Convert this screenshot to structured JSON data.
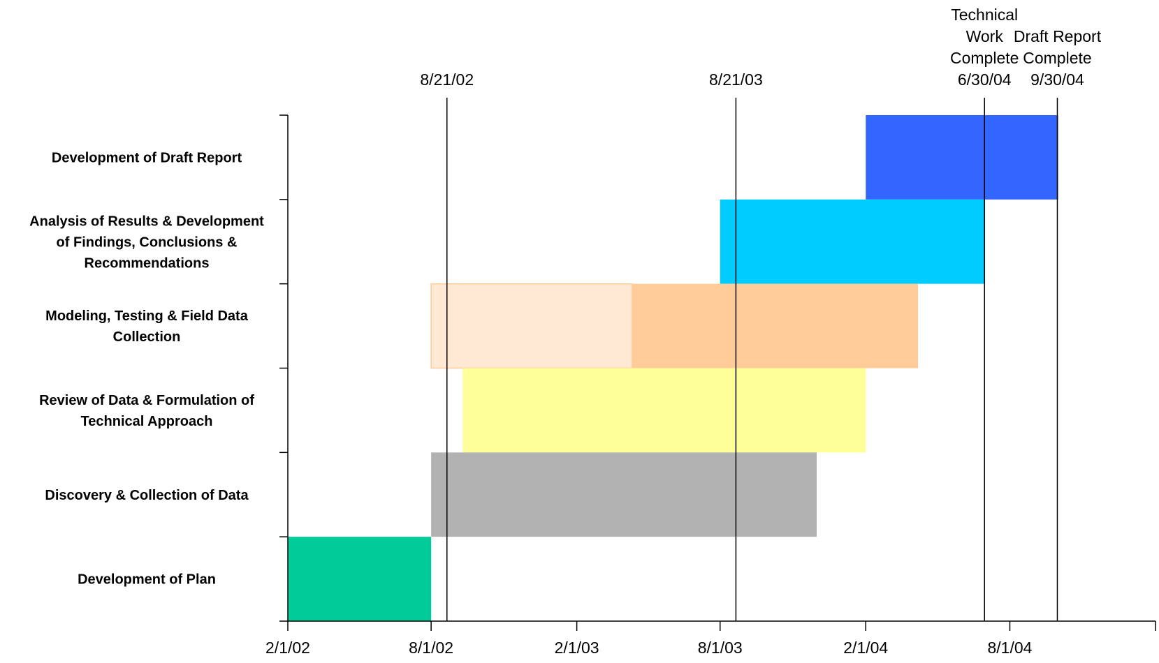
{
  "chart_data": {
    "type": "gantt",
    "title": "",
    "xlabel": "",
    "ylabel": "",
    "x_ticks": [
      "2/1/02",
      "8/1/02",
      "2/1/03",
      "8/1/03",
      "2/1/04",
      "8/1/04"
    ],
    "x_range": [
      "2002-02-01",
      "2005-02-01"
    ],
    "tasks": [
      {
        "label_lines": [
          "Development of Draft Report"
        ],
        "start": "2004-02-01",
        "end": "2004-10-01",
        "color": "#3366ff"
      },
      {
        "label_lines": [
          "Analysis of Results & Development",
          "of Findings, Conclusions &",
          "Recommendations"
        ],
        "start": "2003-08-01",
        "end": "2004-06-30",
        "color": "#00ccff"
      },
      {
        "label_lines": [
          "Modeling, Testing & Field Data",
          "Collection"
        ],
        "start": "2002-08-01",
        "end": "2004-04-07",
        "color": "#ffcc99",
        "light_start": "2002-08-01",
        "light_end": "2003-04-12",
        "light_color": "#ffe8d4"
      },
      {
        "label_lines": [
          "Review of Data & Formulation of",
          "Technical Approach"
        ],
        "start": "2002-09-10",
        "end": "2004-02-01",
        "color": "#ffff99"
      },
      {
        "label_lines": [
          "Discovery & Collection of Data"
        ],
        "start": "2002-08-01",
        "end": "2003-12-01",
        "color": "#b2b2b2"
      },
      {
        "label_lines": [
          "Development of Plan"
        ],
        "start": "2002-02-01",
        "end": "2002-08-01",
        "color": "#00cc99"
      }
    ],
    "milestones": [
      {
        "date": "2002-08-21",
        "label_lines": [
          "8/21/02"
        ]
      },
      {
        "date": "2003-08-21",
        "label_lines": [
          "8/21/03"
        ]
      },
      {
        "date": "2004-06-30",
        "label_lines": [
          "Technical",
          "Work",
          "Complete",
          "6/30/04"
        ]
      },
      {
        "date": "2004-09-30",
        "label_lines": [
          "Draft Report",
          "Complete",
          "9/30/04"
        ]
      }
    ]
  }
}
